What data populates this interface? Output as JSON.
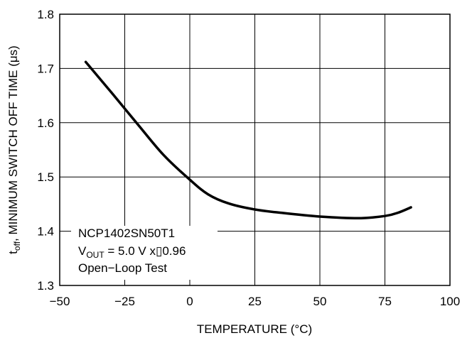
{
  "chart_data": {
    "type": "line",
    "xlabel": "TEMPERATURE (°C)",
    "ylabel_parts": {
      "prefix": "t",
      "sub": "off",
      "suffix": ", MINIMUM SWITCH OFF TIME (μs)"
    },
    "xlim": [
      -50,
      100
    ],
    "ylim": [
      1.3,
      1.8
    ],
    "x_ticks": [
      -50,
      -25,
      0,
      25,
      50,
      75,
      100
    ],
    "y_ticks": [
      1.3,
      1.4,
      1.5,
      1.6,
      1.7,
      1.8
    ],
    "x_tick_labels": [
      "−50",
      "−25",
      "0",
      "25",
      "50",
      "75",
      "100"
    ],
    "y_tick_labels": [
      "1.3",
      "1.4",
      "1.5",
      "1.6",
      "1.7",
      "1.8"
    ],
    "grid": true,
    "series": [
      {
        "x": [
          -40,
          -30,
          -20,
          -10,
          0,
          7,
          15,
          25,
          35,
          50,
          65,
          75,
          80,
          85
        ],
        "y": [
          1.712,
          1.655,
          1.597,
          1.54,
          1.495,
          1.468,
          1.451,
          1.44,
          1.434,
          1.427,
          1.424,
          1.428,
          1.434,
          1.444
        ]
      }
    ],
    "annotation": {
      "line1": "NCP1402SN50T1",
      "line2_prefix": "V",
      "line2_sub": "OUT",
      "line2_suffix": " = 5.0 V x▯0.96",
      "line3": "Open−Loop Test"
    }
  }
}
